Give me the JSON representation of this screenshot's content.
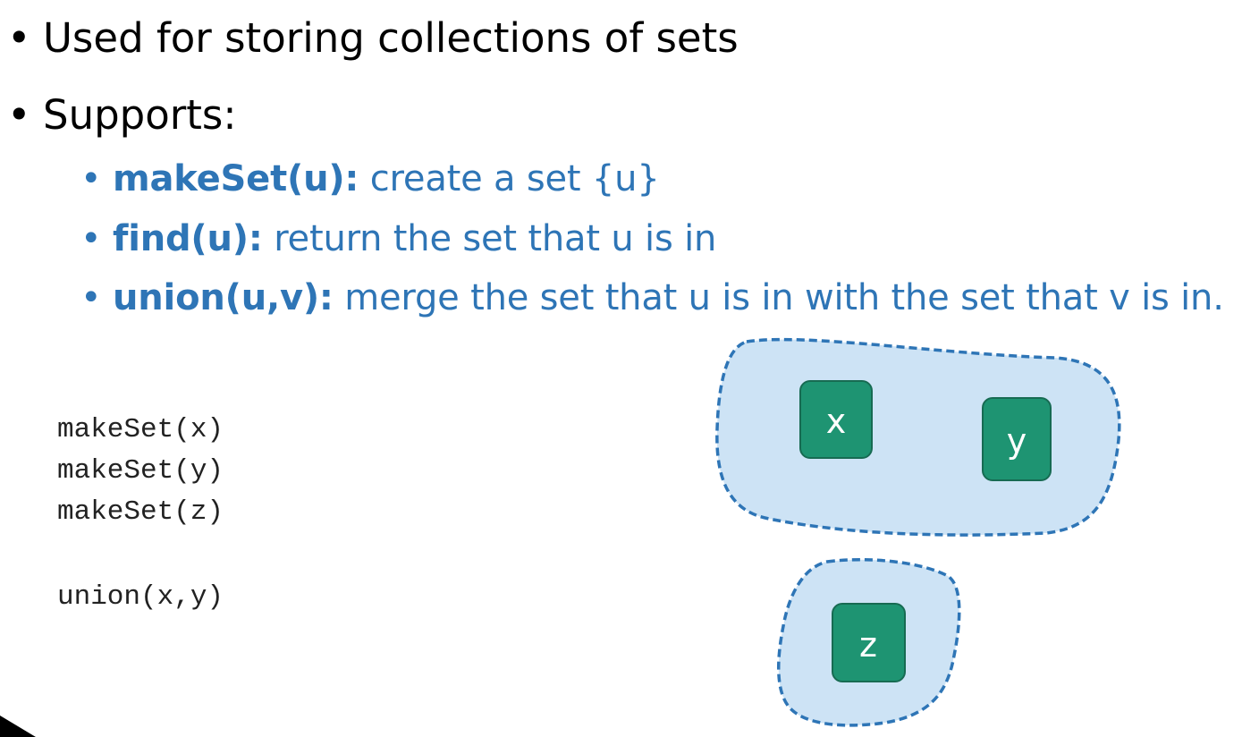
{
  "bullets": [
    {
      "text": "Used for storing collections of sets"
    },
    {
      "text": "Supports:"
    }
  ],
  "operations": [
    {
      "name": "makeSet(u):",
      "desc": "create a set {u}"
    },
    {
      "name": "find(u):",
      "desc": "return the set that u is in"
    },
    {
      "name": "union(u,v):",
      "desc": "merge the set that u is in with the set that v is in."
    }
  ],
  "code_lines": [
    "makeSet(x)",
    "makeSet(y)",
    "makeSet(z)",
    "union(x,y)"
  ],
  "nodes": {
    "x": "x",
    "y": "y",
    "z": "z"
  },
  "colors": {
    "operation_text": "#2e75b6",
    "set_fill": "#cde3f5",
    "set_border": "#2e75b6",
    "node_fill": "#1e9472",
    "node_border": "#176b52"
  }
}
